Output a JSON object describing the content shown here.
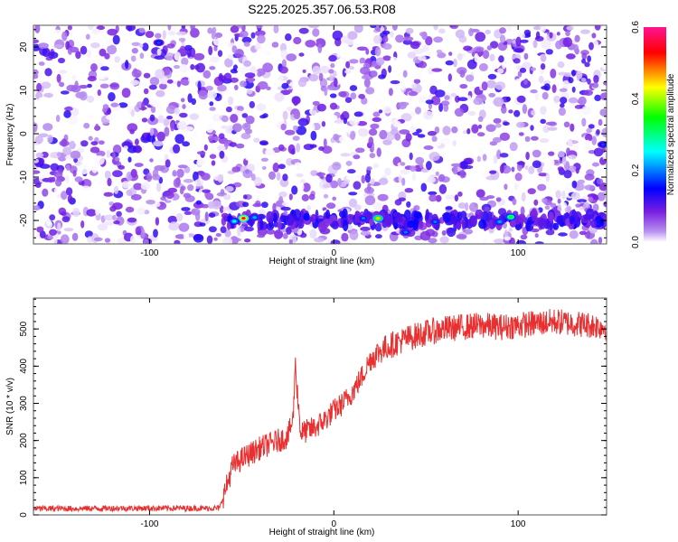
{
  "title": "S225.2025.357.06.53.R08",
  "chart_data": [
    {
      "type": "heatmap",
      "xlabel": "Height of straight line (km)",
      "ylabel": "Frequency (Hz)",
      "xlim": [
        -163,
        148
      ],
      "ylim": [
        -25.4,
        25
      ],
      "xticks": [
        -100,
        0,
        100
      ],
      "xtick_labels": [
        "-100",
        "0",
        "100"
      ],
      "yticks": [
        -20,
        -10,
        0,
        10,
        20
      ],
      "ytick_labels": [
        "-20",
        "-10",
        "0",
        "10",
        "20"
      ],
      "colorbar": {
        "label": "Normalized spectral amplitude",
        "range": [
          0,
          0.6
        ],
        "ticks": [
          0,
          0.2,
          0.4,
          0.6
        ],
        "tick_labels": [
          "0.0",
          "0.2",
          "0.4",
          "0.6"
        ],
        "colormap": [
          "#ffffff",
          "#8a2be2",
          "#0000ff",
          "#00ffff",
          "#00ff00",
          "#ffff00",
          "#ff0000",
          "#ff1493"
        ]
      },
      "background_amplitude": [
        0.0,
        0.12
      ],
      "band": {
        "frequency": -20,
        "amplitude": 0.15,
        "x_start": -60
      },
      "peaks": [
        {
          "x": -49,
          "y": -19.5,
          "value": 0.55
        },
        {
          "x": -54,
          "y": -20.2,
          "value": 0.25
        },
        {
          "x": -43,
          "y": -19.3,
          "value": 0.22
        },
        {
          "x": 24,
          "y": -19.5,
          "value": 0.45
        },
        {
          "x": 96,
          "y": -19.2,
          "value": 0.35
        },
        {
          "x": 16,
          "y": -19.5,
          "value": 0.2
        },
        {
          "x": 55,
          "y": -20.3,
          "value": 0.2
        },
        {
          "x": 90,
          "y": -20.3,
          "value": 0.22
        },
        {
          "x": 39,
          "y": -22.7,
          "value": 0.2
        },
        {
          "x": -95,
          "y": 21,
          "value": 0.18
        },
        {
          "x": 146,
          "y": -2.5,
          "value": 0.18
        }
      ]
    },
    {
      "type": "line",
      "xlabel": "Height of straight line (km)",
      "ylabel": "SNR (10 * v/v)",
      "xlim": [
        -163,
        148
      ],
      "ylim": [
        0,
        583
      ],
      "xticks": [
        -100,
        0,
        100
      ],
      "xtick_labels": [
        "-100",
        "0",
        "100"
      ],
      "yticks": [
        0,
        100,
        200,
        300,
        400,
        500
      ],
      "ytick_labels": [
        "0",
        "100",
        "200",
        "300",
        "400",
        "500"
      ],
      "series": [
        {
          "name": "SNR",
          "color": "#e83030",
          "x": [
            -163,
            -140,
            -120,
            -100,
            -80,
            -62,
            -58,
            -55,
            -50,
            -45,
            -40,
            -35,
            -30,
            -25,
            -22,
            -21,
            -18,
            -15,
            -10,
            -5,
            0,
            5,
            10,
            15,
            20,
            25,
            30,
            40,
            50,
            60,
            70,
            80,
            90,
            100,
            110,
            120,
            130,
            140,
            148
          ],
          "y": [
            17,
            17,
            18,
            18,
            18,
            18,
            80,
            130,
            150,
            165,
            180,
            190,
            200,
            210,
            260,
            410,
            220,
            225,
            235,
            255,
            280,
            300,
            330,
            370,
            420,
            440,
            455,
            475,
            490,
            500,
            505,
            510,
            505,
            510,
            515,
            520,
            515,
            510,
            505
          ],
          "noise_amplitude": [
            8,
            45
          ]
        }
      ]
    }
  ]
}
